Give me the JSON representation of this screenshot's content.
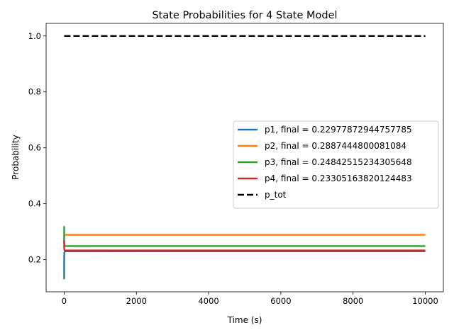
{
  "chart_data": {
    "type": "line",
    "title": "State Probabilities for 4 State Model",
    "xlabel": "Time (s)",
    "ylabel": "Probability",
    "xlim": [
      -500,
      10500
    ],
    "ylim": [
      0.085,
      1.045
    ],
    "xticks": [
      0,
      2000,
      4000,
      6000,
      8000,
      10000
    ],
    "yticks": [
      0.2,
      0.4,
      0.6,
      0.8,
      1.0
    ],
    "xtick_labels": [
      "0",
      "2000",
      "4000",
      "6000",
      "8000",
      "10000"
    ],
    "ytick_labels": [
      "0.2",
      "0.4",
      "0.6",
      "0.8",
      "1.0"
    ],
    "grid": false,
    "legend_position": "center-right",
    "series": [
      {
        "name": "p1, final = 0.22977872944757785",
        "color": "#1f77b4",
        "style": "solid",
        "x": [
          0,
          0,
          5,
          20,
          50,
          10000
        ],
        "y": [
          0.13,
          0.2,
          0.226,
          0.2295,
          0.2297,
          0.22977872944757785
        ]
      },
      {
        "name": "p2, final = 0.2887444800081084",
        "color": "#ff7f0e",
        "style": "solid",
        "x": [
          0,
          0,
          5,
          20,
          50,
          10000
        ],
        "y": [
          0.28,
          0.285,
          0.2885,
          0.2887,
          0.28874,
          0.2887444800081084
        ]
      },
      {
        "name": "p3, final = 0.24842515234305648",
        "color": "#2ca02c",
        "style": "solid",
        "x": [
          0,
          0,
          5,
          20,
          50,
          10000
        ],
        "y": [
          0.32,
          0.27,
          0.25,
          0.2485,
          0.24843,
          0.24842515234305648
        ]
      },
      {
        "name": "p4, final = 0.23305163820124483",
        "color": "#d62728",
        "style": "solid",
        "x": [
          0,
          0,
          5,
          20,
          50,
          10000
        ],
        "y": [
          0.27,
          0.245,
          0.234,
          0.2331,
          0.23305,
          0.23305163820124483
        ]
      },
      {
        "name": "p_tot",
        "color": "#000000",
        "style": "dashed",
        "x": [
          0,
          10000
        ],
        "y": [
          1.0,
          1.0
        ]
      }
    ]
  }
}
